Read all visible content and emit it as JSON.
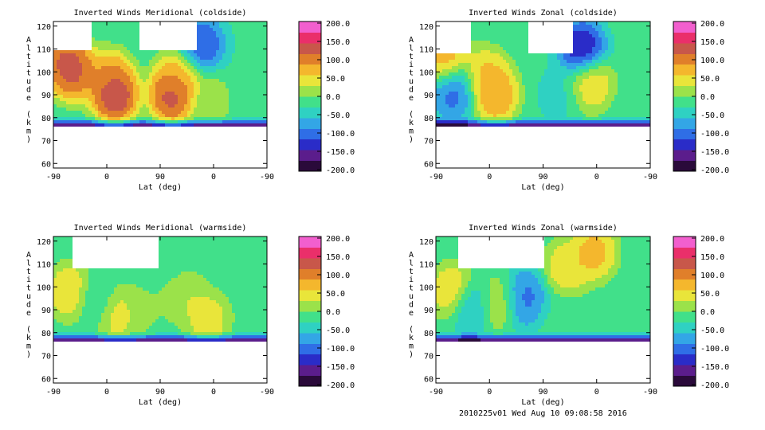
{
  "footer": "2010225v01 Wed Aug 10 09:08:58 2016",
  "colors": {
    "scale": [
      "#2a0a3a",
      "#5b1d8c",
      "#2a2cc8",
      "#2f6ee6",
      "#33a6e6",
      "#2fd1c2",
      "#41e08a",
      "#9be24a",
      "#e9e53a",
      "#f4b72d",
      "#e07f2a",
      "#c8574a",
      "#ea2f6a",
      "#f25fce"
    ]
  },
  "chart_data": [
    {
      "type": "heatmap",
      "title": "Inverted Winds Meridional (coldside)",
      "xlabel": "Lat (deg)",
      "ylabel": "Altitude (km)",
      "x_ticks": [
        "-90",
        "0",
        "90",
        "0",
        "-90"
      ],
      "y_ticks": [
        "60",
        "70",
        "80",
        "90",
        "100",
        "110",
        "120"
      ],
      "ylim": [
        58,
        122
      ],
      "colorbar": {
        "ticks": [
          "200.0",
          "150.0",
          "100.0",
          "50.0",
          "0.0",
          "-50.0",
          "-100.0",
          "-150.0",
          "-200.0"
        ],
        "range": [
          -200,
          200
        ]
      },
      "data_region": {
        "alt_bottom": 76,
        "gaps": [
          [
            -100,
            -28
          ],
          [
            55,
            150
          ]
        ],
        "notch_top": 109
      },
      "blobs": [
        {
          "lat": -72,
          "alt": 105,
          "value": 140
        },
        {
          "lat": -56,
          "alt": 100,
          "value": 150
        },
        {
          "lat": 5,
          "alt": 97,
          "value": 110
        },
        {
          "lat": 14,
          "alt": 90,
          "value": 180
        },
        {
          "lat": 110,
          "alt": 90,
          "value": 170
        },
        {
          "lat": 120,
          "alt": 97,
          "value": 80
        },
        {
          "lat": 175,
          "alt": 88,
          "value": 20
        },
        {
          "lat": 160,
          "alt": 112,
          "value": -130
        }
      ]
    },
    {
      "type": "heatmap",
      "title": "Inverted Winds Zonal (coldside)",
      "xlabel": "Lat (deg)",
      "ylabel": "Altitude (km)",
      "x_ticks": [
        "-90",
        "0",
        "90",
        "0",
        "-90"
      ],
      "y_ticks": [
        "60",
        "70",
        "80",
        "90",
        "100",
        "110",
        "120"
      ],
      "ylim": [
        58,
        122
      ],
      "colorbar": {
        "ticks": [
          "200.0",
          "150.0",
          "100.0",
          "50.0",
          "0.0",
          "-50.0",
          "-100.0",
          "-150.0",
          "-200.0"
        ],
        "range": [
          -200,
          200
        ]
      },
      "data_region": {
        "alt_bottom": 76,
        "gaps": [
          [
            -100,
            -32
          ],
          [
            65,
            140
          ]
        ],
        "notch_top": 108
      },
      "blobs": [
        {
          "lat": -72,
          "alt": 105,
          "value": 100
        },
        {
          "lat": -60,
          "alt": 92,
          "value": -120
        },
        {
          "lat": -5,
          "alt": 98,
          "value": 80
        },
        {
          "lat": 10,
          "alt": 90,
          "value": 110
        },
        {
          "lat": 115,
          "alt": 90,
          "value": -40
        },
        {
          "lat": 155,
          "alt": 110,
          "value": -170
        },
        {
          "lat": 170,
          "alt": 95,
          "value": 70
        }
      ]
    },
    {
      "type": "heatmap",
      "title": "Inverted Winds Meridional (warmside)",
      "xlabel": "Lat (deg)",
      "ylabel": "Altitude (km)",
      "x_ticks": [
        "-90",
        "0",
        "90",
        "0",
        "-90"
      ],
      "y_ticks": [
        "60",
        "70",
        "80",
        "90",
        "100",
        "110",
        "120"
      ],
      "ylim": [
        58,
        122
      ],
      "colorbar": {
        "ticks": [
          "200.0",
          "150.0",
          "100.0",
          "50.0",
          "0.0",
          "-50.0",
          "-100.0",
          "-150.0",
          "-200.0"
        ],
        "range": [
          -200,
          200
        ]
      },
      "data_region": {
        "alt_bottom": 76,
        "gaps": [
          [
            -60,
            90
          ]
        ],
        "notch_top": 108
      },
      "blobs": [
        {
          "lat": -60,
          "alt": 98,
          "value": 80
        },
        {
          "lat": -20,
          "alt": 95,
          "value": -40
        },
        {
          "lat": 20,
          "alt": 88,
          "value": 60
        },
        {
          "lat": 60,
          "alt": 90,
          "value": 10
        },
        {
          "lat": 130,
          "alt": 96,
          "value": 40
        },
        {
          "lat": 170,
          "alt": 86,
          "value": 60
        },
        {
          "lat": 110,
          "alt": 108,
          "value": -10
        }
      ]
    },
    {
      "type": "heatmap",
      "title": "Inverted Winds Zonal (warmside)",
      "xlabel": "Lat (deg)",
      "ylabel": "Altitude (km)",
      "x_ticks": [
        "-90",
        "0",
        "90",
        "0",
        "-90"
      ],
      "y_ticks": [
        "60",
        "70",
        "80",
        "90",
        "100",
        "110",
        "120"
      ],
      "ylim": [
        58,
        122
      ],
      "colorbar": {
        "ticks": [
          "200.0",
          "150.0",
          "100.0",
          "50.0",
          "0.0",
          "-50.0",
          "-100.0",
          "-150.0",
          "-200.0"
        ],
        "range": [
          -200,
          200
        ]
      },
      "data_region": {
        "alt_bottom": 76,
        "gaps": [
          [
            -50,
            90
          ]
        ],
        "notch_top": 108
      },
      "blobs": [
        {
          "lat": -60,
          "alt": 98,
          "value": 80
        },
        {
          "lat": -30,
          "alt": 92,
          "value": -90
        },
        {
          "lat": 10,
          "alt": 93,
          "value": 40
        },
        {
          "lat": 60,
          "alt": 95,
          "value": -110
        },
        {
          "lat": 130,
          "alt": 108,
          "value": 70
        },
        {
          "lat": 175,
          "alt": 115,
          "value": 90
        },
        {
          "lat": 120,
          "alt": 85,
          "value": -20
        }
      ]
    }
  ]
}
